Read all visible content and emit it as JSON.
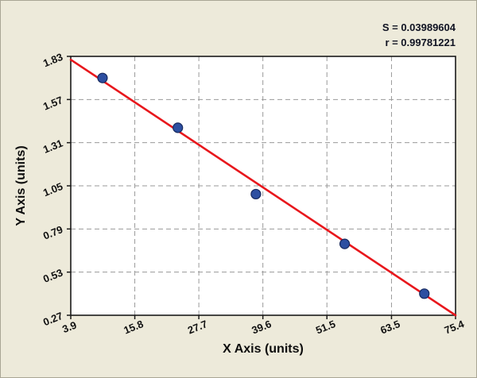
{
  "stats": {
    "s_value": "S = 0.03989604",
    "r_value": "r = 0.99781221"
  },
  "chart_data": {
    "type": "scatter",
    "title": "",
    "xlabel": "X Axis (units)",
    "ylabel": "Y Axis (units)",
    "xlim": [
      3.9,
      75.4
    ],
    "ylim": [
      0.27,
      1.83
    ],
    "x_ticks": [
      3.9,
      15.8,
      27.7,
      39.6,
      51.5,
      63.5,
      75.4
    ],
    "y_ticks": [
      0.27,
      0.53,
      0.79,
      1.05,
      1.31,
      1.57,
      1.83
    ],
    "x_tick_labels": [
      "3.9",
      "15.8",
      "27.7",
      "39.6",
      "51.5",
      "63.5",
      "75.4"
    ],
    "y_tick_labels": [
      "0.27",
      "0.53",
      "0.79",
      "1.05",
      "1.31",
      "1.57",
      "1.83"
    ],
    "grid": "dashed",
    "legend": "none",
    "points": [
      [
        9.8,
        1.7
      ],
      [
        23.8,
        1.4
      ],
      [
        38.3,
        1.0
      ],
      [
        54.8,
        0.7
      ],
      [
        69.6,
        0.4
      ]
    ],
    "fit_line": {
      "x1": 3.9,
      "y1": 1.81,
      "x2": 75.4,
      "y2": 0.27
    },
    "annotations": [
      "S = 0.03989604",
      "r = 0.99781221"
    ],
    "point_color": "#2d4fa1",
    "point_edge_color": "#16295e",
    "line_color": "#e8171c",
    "grid_color": "#9a9a9a",
    "plot_bg": "#ffffff",
    "page_bg": "#edeada"
  }
}
